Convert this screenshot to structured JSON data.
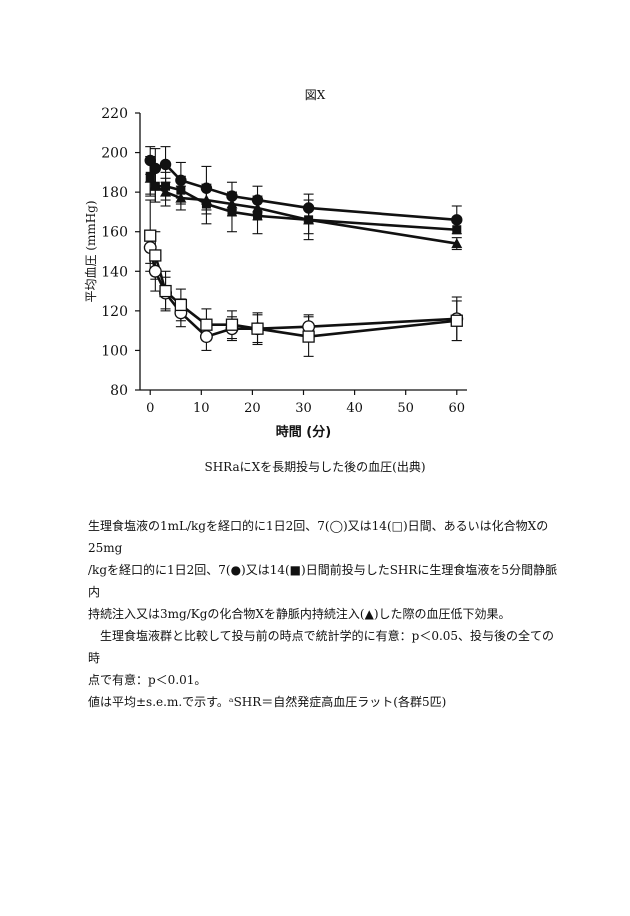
{
  "figure_title": "図X",
  "caption": "SHRaにXを長期投与した後の血圧(出典)",
  "notes": {
    "line1": "生理食塩液の1mL/kgを経口的に1日2回、7(◯)又は14(□)日間、あるいは化合物Xの25mg",
    "line2": "/kgを経口的に1日2回、7(●)又は14(■)日間前投与したSHRに生理食塩液を5分間静脈内",
    "line3": "持続注入又は3mg/Kgの化合物Xを静脈内持続注入(▲)した際の血圧低下効果。",
    "line4": "生理食塩液群と比較して投与前の時点で統計学的に有意：p＜0.05、投与後の全ての時",
    "line5": "点で有意：p＜0.01。",
    "line6": "値は平均±s.e.m.で示す。ᵃSHR＝自然発症高血圧ラット(各群5匹)"
  },
  "chart_data": {
    "type": "line",
    "xlabel": "時間 (分)",
    "ylabel": "平均血圧 (mmHg)",
    "xlim": [
      -2,
      62
    ],
    "ylim": [
      80,
      220
    ],
    "xticks": [
      0,
      10,
      20,
      30,
      40,
      50,
      60
    ],
    "yticks": [
      80,
      100,
      120,
      140,
      160,
      180,
      200,
      220
    ],
    "grid": false,
    "legend": "none",
    "series": [
      {
        "marker": "filled-circle",
        "x": [
          0,
          1,
          3,
          6,
          11,
          16,
          21,
          31,
          60
        ],
        "y": [
          196,
          192,
          194,
          186,
          182,
          178,
          176,
          172,
          166
        ],
        "err": [
          7,
          10,
          9,
          9,
          11,
          7,
          7,
          7,
          7
        ]
      },
      {
        "marker": "filled-square",
        "x": [
          0,
          1,
          3,
          6,
          11,
          16,
          21,
          31,
          60
        ],
        "y": [
          188,
          183,
          183,
          181,
          174,
          170,
          168,
          166,
          161
        ],
        "err": [
          10,
          8,
          7,
          7,
          10,
          10,
          9,
          10,
          0
        ]
      },
      {
        "marker": "filled-triangle",
        "x": [
          0,
          1,
          3,
          6,
          11,
          16,
          21,
          31,
          60
        ],
        "y": [
          187,
          183,
          180,
          177,
          176,
          174,
          172,
          166,
          154
        ],
        "err": [
          8,
          8,
          7,
          6,
          7,
          6,
          6,
          7,
          3
        ]
      },
      {
        "marker": "open-circle",
        "x": [
          0,
          1,
          3,
          6,
          11,
          16,
          21,
          31,
          60
        ],
        "y": [
          152,
          140,
          129,
          119,
          107,
          111,
          111,
          112,
          116
        ],
        "err": [
          8,
          10,
          8,
          7,
          7,
          6,
          7,
          6,
          11
        ]
      },
      {
        "marker": "open-square",
        "x": [
          0,
          1,
          3,
          6,
          11,
          16,
          21,
          31,
          60
        ],
        "y": [
          158,
          148,
          130,
          123,
          113,
          113,
          111,
          107,
          115
        ],
        "err": [
          18,
          12,
          10,
          8,
          8,
          7,
          8,
          10,
          10
        ]
      }
    ]
  }
}
